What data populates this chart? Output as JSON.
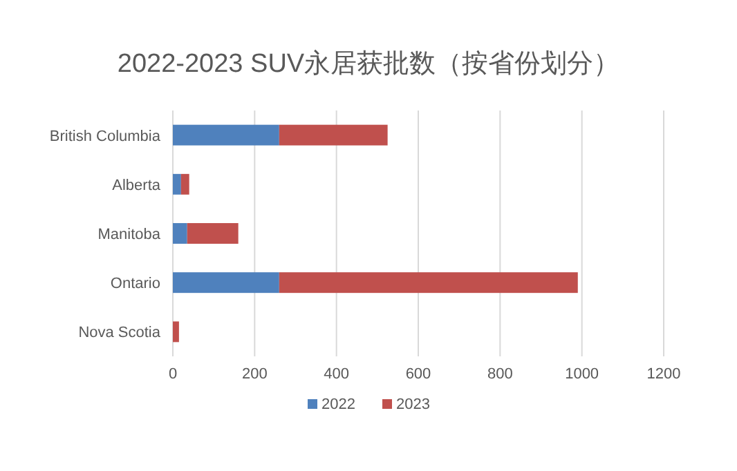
{
  "chart_data": {
    "type": "bar",
    "orientation": "horizontal",
    "stacked": true,
    "title": "2022-2023 SUV永居获批数（按省份划分）",
    "categories": [
      "British Columbia",
      "Alberta",
      "Manitoba",
      "Ontario",
      "Nova Scotia"
    ],
    "series": [
      {
        "name": "2022",
        "color": "#4f81bd",
        "values": [
          260,
          20,
          35,
          260,
          0
        ]
      },
      {
        "name": "2023",
        "color": "#c0504d",
        "values": [
          265,
          20,
          125,
          730,
          15
        ]
      }
    ],
    "xlim": [
      0,
      1200
    ],
    "xticks": [
      0,
      200,
      400,
      600,
      800,
      1000,
      1200
    ],
    "grid": "x",
    "legend": "bottom"
  }
}
